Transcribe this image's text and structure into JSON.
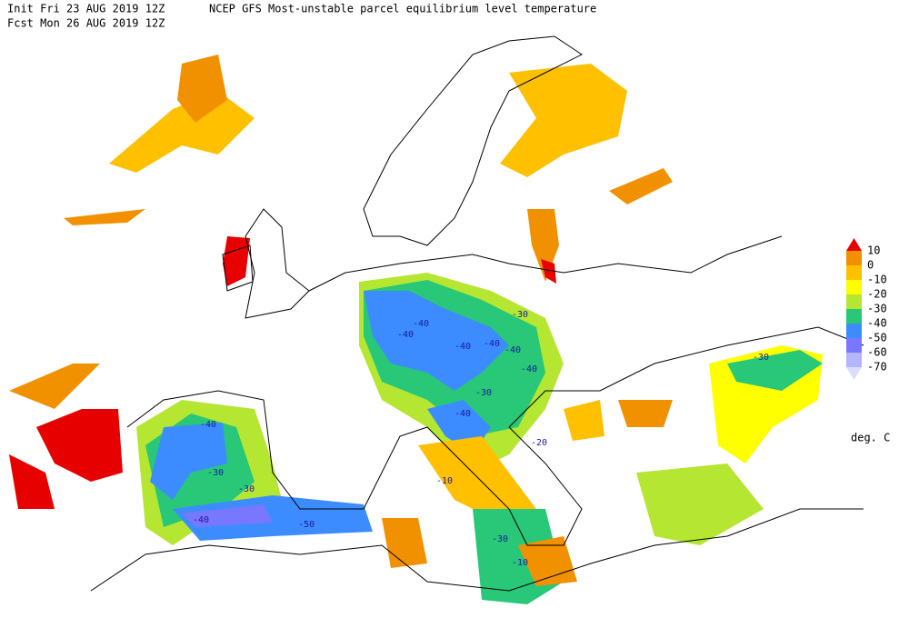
{
  "header": {
    "init": "Init  Fri 23 AUG 2019 12Z",
    "title": "NCEP GFS Most-unstable parcel equilibrium level temperature",
    "forecast": "Fcst Mon 26 AUG 2019 12Z"
  },
  "legend": {
    "levels": [
      10,
      0,
      -10,
      -20,
      -30,
      -40,
      -50,
      -60,
      -70
    ],
    "colors": [
      "#e60000",
      "#f29100",
      "#ffc000",
      "#ffff00",
      "#b4e632",
      "#28c878",
      "#3c8cff",
      "#7878ff",
      "#b4b4ff",
      "#dcdcff"
    ],
    "unit": "deg. C"
  },
  "map": {
    "contour_labels": [
      -40,
      -40,
      -30,
      -40,
      -40,
      -40,
      -40,
      -30,
      -40,
      -20,
      -40,
      -30,
      -30,
      -40,
      -50,
      -10,
      -30,
      -10,
      -30
    ]
  }
}
